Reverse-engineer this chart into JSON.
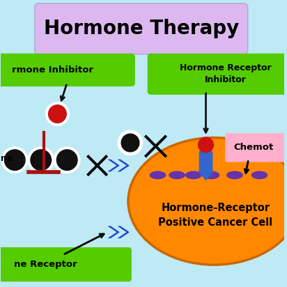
{
  "bg_color": "#beeaf5",
  "title": "Hormone Therapy",
  "title_box_color": "#ddb8f0",
  "title_fontsize": 20,
  "label_hormone_inhibitor": "rmone Inhibitor",
  "label_hormone_receptor_inhibitor": "Hormone Receptor\nInhibitor",
  "label_chemo": "Chemot",
  "label_cancer_cell": "Hormone-Receptor\nPositive Cancer Cell",
  "label_hormone_receptor": "ne Receptor",
  "label_hormone": "ne",
  "green_box_color": "#55cc00",
  "pink_box_color": "#ffb0cc",
  "orange_ellipse_color": "#ff8800",
  "orange_edge_color": "#cc6600",
  "red_circle_color": "#cc1111",
  "blue_arrow_color": "#2244cc",
  "receptor_body_color": "#3366cc",
  "purple_oval_color": "#6633aa",
  "white_color": "#ffffff",
  "black_color": "#111111",
  "dark_red_color": "#aa1111"
}
